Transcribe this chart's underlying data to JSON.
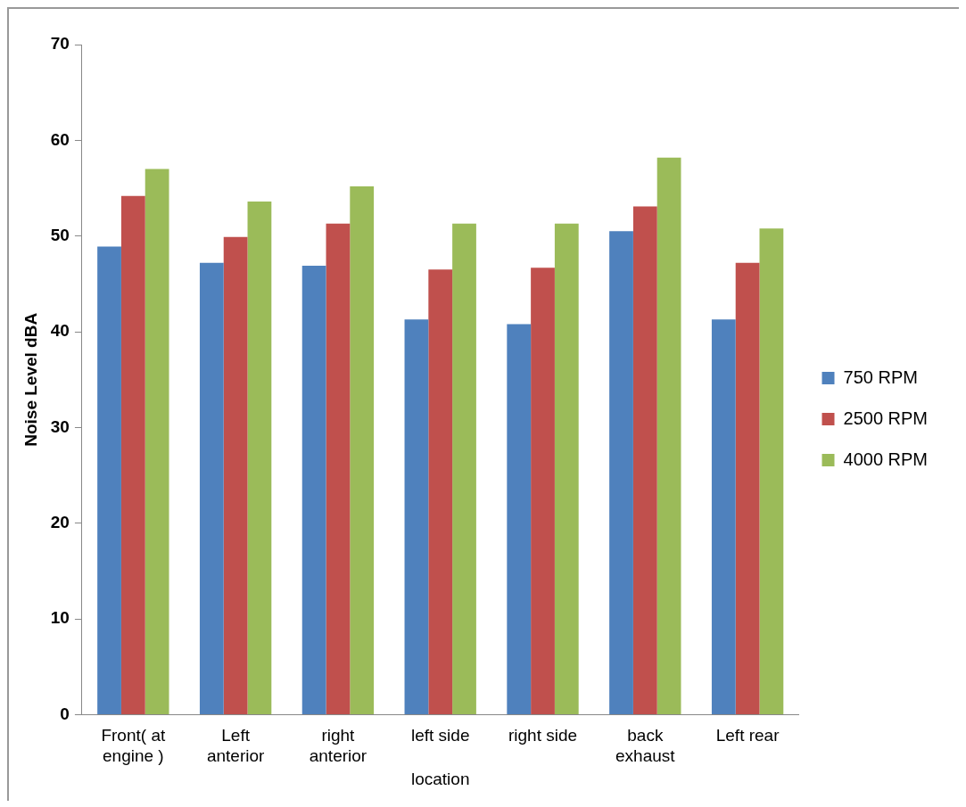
{
  "chart_data": {
    "type": "bar",
    "xlabel": "location",
    "ylabel": "Noise Level dBA",
    "categories": [
      "Front( at engine )",
      "Left anterior",
      "right anterior",
      "left side",
      "right side",
      "back exhaust",
      "Left rear"
    ],
    "series": [
      {
        "name": "750 RPM",
        "color": "#4f81bd",
        "values": [
          48.9,
          47.2,
          46.9,
          41.3,
          40.8,
          50.5,
          41.3
        ]
      },
      {
        "name": "2500 RPM",
        "color": "#c0504d",
        "values": [
          54.2,
          49.9,
          51.3,
          46.5,
          46.7,
          53.1,
          47.2
        ]
      },
      {
        "name": "4000 RPM",
        "color": "#9bbb59",
        "values": [
          57.0,
          53.6,
          55.2,
          51.3,
          51.3,
          58.2,
          50.8
        ]
      }
    ],
    "ylim": [
      0,
      70
    ],
    "yticks": [
      0,
      10,
      20,
      30,
      40,
      50,
      60,
      70
    ],
    "grid": false,
    "legend": "right"
  }
}
